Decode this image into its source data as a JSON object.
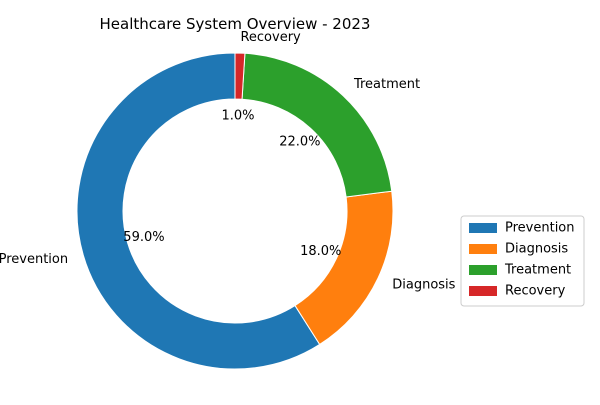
{
  "chart_data": {
    "type": "pie",
    "style": "donut",
    "title": "Healthcare System Overview - 2023",
    "categories": [
      "Prevention",
      "Diagnosis",
      "Treatment",
      "Recovery"
    ],
    "values": [
      59.0,
      18.0,
      22.0,
      1.0
    ],
    "value_labels": [
      "59.0%",
      "18.0%",
      "22.0%",
      "1.0%"
    ],
    "colors": [
      "#1f77b4",
      "#ff7f0e",
      "#2ca02c",
      "#d62728"
    ],
    "legend": {
      "placement": "center-right",
      "entries": [
        "Prevention",
        "Diagnosis",
        "Treatment",
        "Recovery"
      ]
    }
  }
}
